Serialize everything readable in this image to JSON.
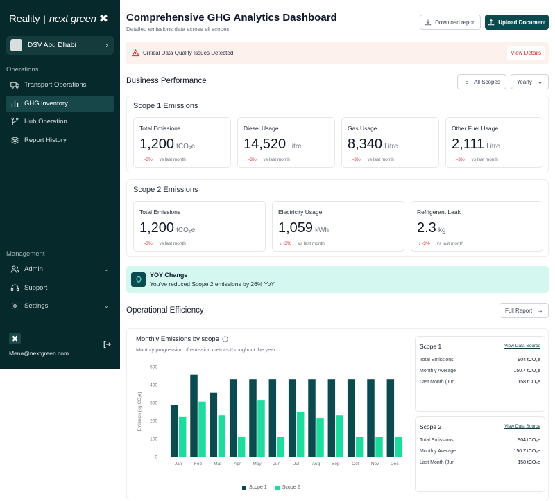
{
  "brand": {
    "part1": "Reality",
    "separator": "|",
    "part2": "next green",
    "mark": "✖"
  },
  "org": {
    "name": "DSV Abu Dhabi",
    "chevron": "›"
  },
  "sidebar": {
    "operations_label": "Operations",
    "items": [
      {
        "label": "Transport Operations",
        "icon": "truck-icon"
      },
      {
        "label": "GHG inventory",
        "icon": "bar-chart-icon"
      },
      {
        "label": "Hub Operation",
        "icon": "branch-icon"
      },
      {
        "label": "Report History",
        "icon": "layers-icon"
      }
    ],
    "management_label": "Management",
    "management": [
      {
        "label": "Admin",
        "icon": "users-icon"
      },
      {
        "label": "Support",
        "icon": "headset-icon"
      },
      {
        "label": "Settings",
        "icon": "gear-icon"
      }
    ],
    "email": "Mena@nextgreen.com"
  },
  "header": {
    "title": "Comprehensive GHG Analytics Dashboard",
    "subtitle": "Detailed emissions data across all scopes.",
    "download_label": "Download report",
    "upload_label": "Upload Document"
  },
  "alert": {
    "text": "Critical Data Quality Issues Detected",
    "action": "View Details"
  },
  "business": {
    "title": "Business Performance",
    "scope_filter": "All Scopes",
    "period": "Yearly"
  },
  "scope1": {
    "title": "Scope 1 Emissions",
    "metrics": [
      {
        "label": "Total Emissions",
        "value": "1,200",
        "unit": "tCO₂e",
        "delta": "-3%",
        "compare": "vs last month"
      },
      {
        "label": "Diesel Usage",
        "value": "14,520",
        "unit": "Litre",
        "delta": "-3%",
        "compare": "vs last month"
      },
      {
        "label": "Gas Usage",
        "value": "8,340",
        "unit": "Litre",
        "delta": "-3%",
        "compare": "vs last month"
      },
      {
        "label": "Other Fuel Usage",
        "value": "2,111",
        "unit": "Litre",
        "delta": "-3%",
        "compare": "vs last month"
      }
    ]
  },
  "scope2": {
    "title": "Scope 2 Emissions",
    "metrics": [
      {
        "label": "Total Emissions",
        "value": "1,200",
        "unit": "tCO₂e",
        "delta": "-3%",
        "compare": "vs last month"
      },
      {
        "label": "Electricity Usage",
        "value": "1,059",
        "unit": "kWh",
        "delta": "-3%",
        "compare": "vs last month"
      },
      {
        "label": "Refrigerant Leak",
        "value": "2.3",
        "unit": "kg",
        "delta": "-3%",
        "compare": "vs last month"
      }
    ]
  },
  "yoy": {
    "title": "YOY Change",
    "text": "You've reduced Scope 2 emissions by 26% YoY"
  },
  "operational": {
    "title": "Operational Efficiency",
    "full_report": "Full Report"
  },
  "chart_panel": {
    "title": "Monthly Emissions by scope",
    "subtitle": "Monthly progression of emission metrics throughout the year"
  },
  "chart_data": {
    "type": "bar",
    "title": "Monthly Emissions by scope",
    "ylabel": "Emission (kg CO₂e)",
    "xlabel": "",
    "ylim": [
      0,
      500
    ],
    "yticks": [
      0,
      100,
      200,
      300,
      400,
      500
    ],
    "categories": [
      "Jan",
      "Feb",
      "Mar",
      "Apr",
      "May",
      "Jun",
      "Jul",
      "Aug",
      "Sep",
      "Oct",
      "Nov",
      "Dec"
    ],
    "series": [
      {
        "name": "Scope 1",
        "color": "#0b4a4f",
        "values": [
          285,
          455,
          355,
          430,
          430,
          430,
          430,
          430,
          430,
          430,
          430,
          430
        ]
      },
      {
        "name": "Scope 2",
        "color": "#1fdc9e",
        "values": [
          220,
          305,
          230,
          110,
          315,
          110,
          250,
          215,
          230,
          110,
          110,
          110
        ]
      }
    ],
    "legend": "bottom"
  },
  "scope1_summary": {
    "title": "Scope 1",
    "link": "View Data Source",
    "rows": [
      {
        "label": "Total Emissions",
        "value": "904 tCO₂e"
      },
      {
        "label": "Monthly Average",
        "value": "150.7 tCO₂e"
      },
      {
        "label": "Last Month (Jun",
        "value": "158 tCO₂e"
      }
    ]
  },
  "scope2_summary": {
    "title": "Scope 2",
    "link": "View Data Source",
    "rows": [
      {
        "label": "Total Emissions",
        "value": "904 tCO₂e"
      },
      {
        "label": "Monthly Average",
        "value": "150.7 tCO₂e"
      },
      {
        "label": "Last Month (Jun",
        "value": "158 tCO₂e"
      }
    ]
  }
}
